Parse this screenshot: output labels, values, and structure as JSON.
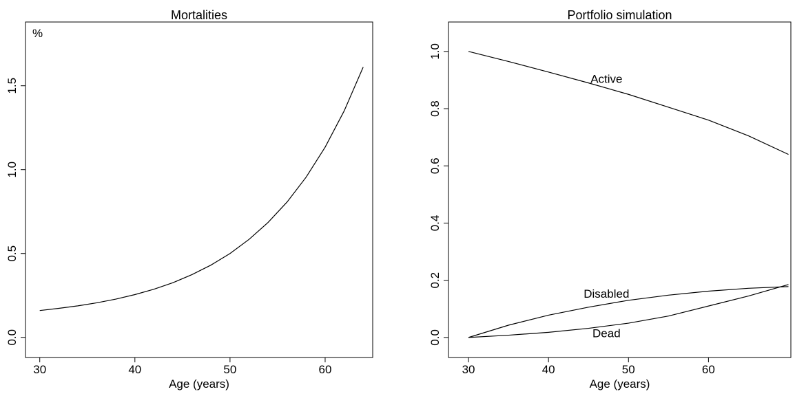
{
  "chart_data": [
    {
      "type": "line",
      "title": "Mortalities",
      "xlabel": "Age (years)",
      "annotation": "%",
      "x": [
        30,
        32,
        34,
        36,
        38,
        40,
        42,
        44,
        46,
        48,
        50,
        52,
        54,
        56,
        58,
        60,
        62,
        64
      ],
      "series": [
        {
          "color": "#000000",
          "values": [
            0.16,
            0.173,
            0.188,
            0.206,
            0.228,
            0.255,
            0.287,
            0.326,
            0.374,
            0.431,
            0.5,
            0.584,
            0.685,
            0.807,
            0.955,
            1.134,
            1.35,
            1.611
          ]
        }
      ],
      "xlim": [
        28.5,
        65.0
      ],
      "xticks": [
        30,
        40,
        50,
        60
      ],
      "ylim": [
        -0.12,
        1.88
      ],
      "yticks": [
        {
          "value": 0,
          "label": "0.0"
        },
        0.5,
        {
          "value": 1,
          "label": "1.0"
        },
        1.5
      ]
    },
    {
      "type": "line",
      "title": "Portfolio simulation",
      "xlabel": "Age (years)",
      "x": [
        30,
        35,
        40,
        45,
        50,
        55,
        60,
        65,
        70
      ],
      "series": [
        {
          "name": "Active",
          "color": "#000000",
          "values": [
            1.0,
            0.965,
            0.928,
            0.89,
            0.85,
            0.805,
            0.76,
            0.705,
            0.64
          ]
        },
        {
          "name": "Disabled",
          "color": "#000000",
          "values": [
            0,
            0.043,
            0.078,
            0.106,
            0.13,
            0.148,
            0.162,
            0.172,
            0.178
          ]
        },
        {
          "name": "Dead",
          "color": "#000000",
          "values": [
            0,
            0.008,
            0.018,
            0.032,
            0.05,
            0.075,
            0.11,
            0.145,
            0.185
          ]
        }
      ],
      "xlim": [
        27.5,
        70.3
      ],
      "xticks": [
        30,
        40,
        50,
        60
      ],
      "ylim": [
        -0.07,
        1.103
      ],
      "yticks": [
        {
          "value": 0,
          "label": "0.0"
        },
        0.2,
        0.4,
        0.6,
        0.8,
        {
          "value": 1,
          "label": "1.0"
        }
      ]
    }
  ]
}
